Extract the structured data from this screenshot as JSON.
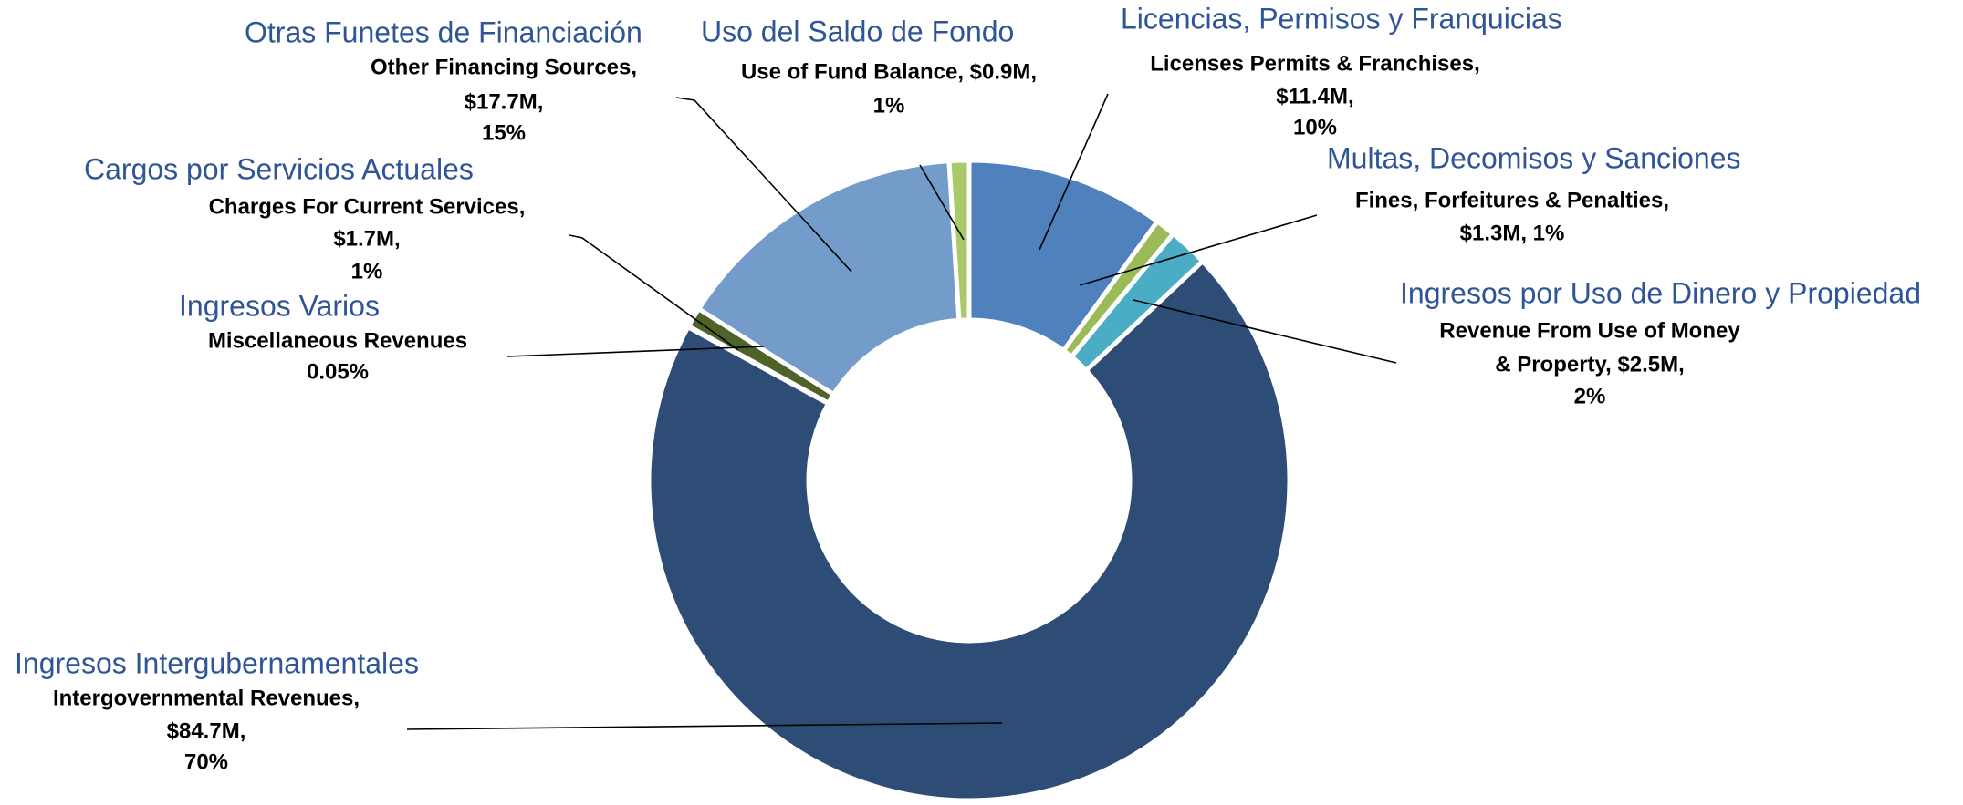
{
  "chart_data": {
    "type": "donut",
    "spanish_labels": [
      "Licencias, Permisos y Franquicias",
      "Multas, Decomisos y Sanciones",
      "Ingresos por Uso de Dinero y Propiedad",
      "Ingresos Intergubernamentales",
      "Ingresos Varios",
      "Cargos por Servicios Actuales",
      "Otras Funetes de Financiación",
      "Uso del Saldo de Fondo"
    ],
    "values": [
      10,
      1,
      2,
      70,
      0.05,
      1,
      15,
      1
    ],
    "value_labels": [
      [
        "Licenses Permits & Franchises,",
        "$11.4M,",
        "10%"
      ],
      [
        "Fines, Forfeitures & Penalties,",
        "$1.3M, 1%"
      ],
      [
        "Revenue From Use of Money",
        "& Property, $2.5M,",
        "2%"
      ],
      [
        "Intergovernmental Revenues,",
        "$84.7M,",
        "70%"
      ],
      [
        "Miscellaneous Revenues",
        "0.05%"
      ],
      [
        "Charges For Current Services,",
        "$1.7M,",
        "1%"
      ],
      [
        "Other Financing Sources,",
        "$17.7M,",
        "15%"
      ],
      [
        "Use of Fund Balance, $0.9M,",
        "1%"
      ]
    ],
    "colors": [
      "#4f81bd",
      "#9bbb59",
      "#4bacc6",
      "#2e4d76",
      "#4f6228",
      "#4f6228",
      "#739cca",
      "#a9c96a"
    ]
  }
}
